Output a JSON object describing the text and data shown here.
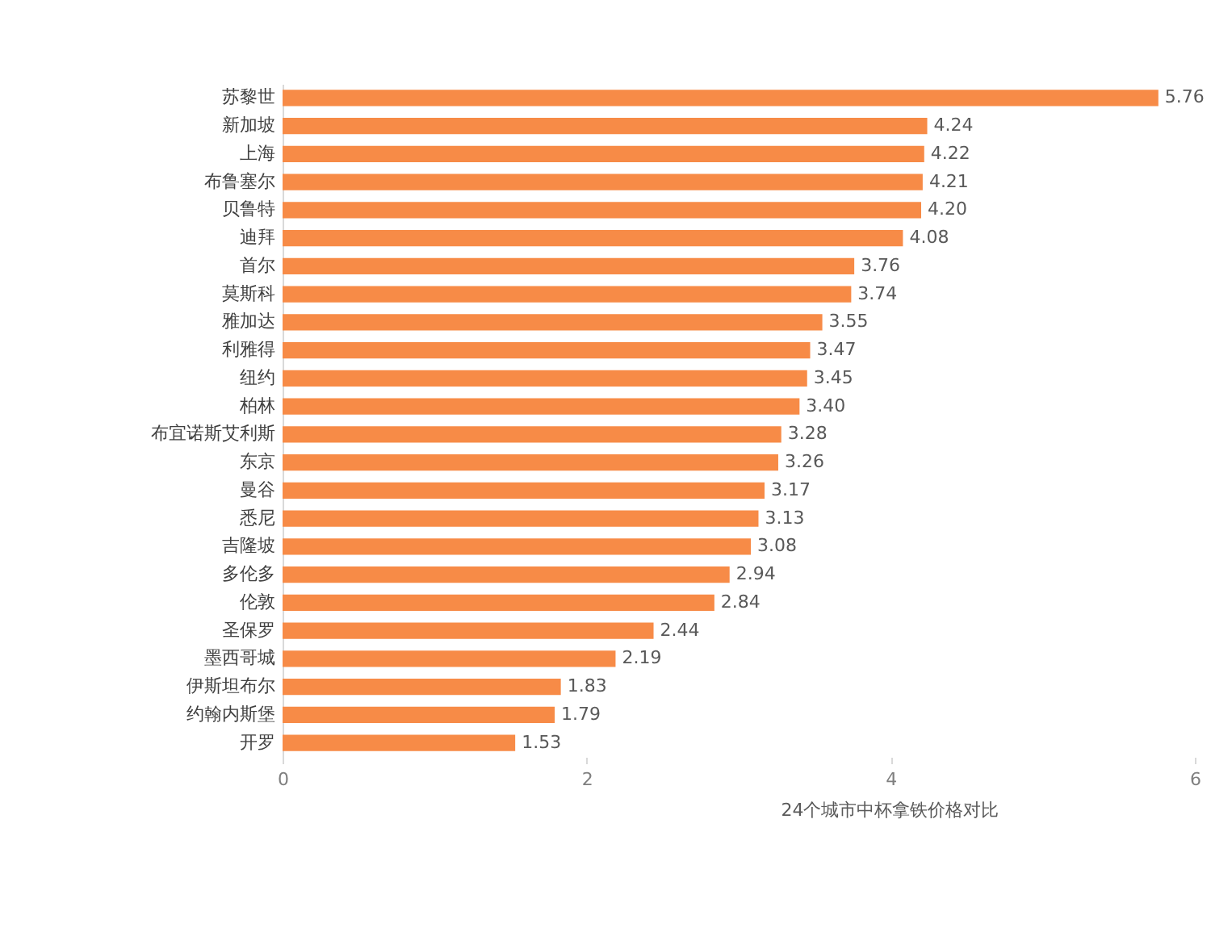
{
  "chart_data": {
    "type": "bar",
    "orientation": "horizontal",
    "xlabel": "24个城市中杯拿铁价格对比",
    "categories": [
      "苏黎世",
      "新加坡",
      "上海",
      "布鲁塞尔",
      "贝鲁特",
      "迪拜",
      "首尔",
      "莫斯科",
      "雅加达",
      "利雅得",
      "纽约",
      "柏林",
      "布宜诺斯艾利斯",
      "东京",
      "曼谷",
      "悉尼",
      "吉隆坡",
      "多伦多",
      "伦敦",
      "圣保罗",
      "墨西哥城",
      "伊斯坦布尔",
      "约翰内斯堡",
      "开罗"
    ],
    "values": [
      5.76,
      4.24,
      4.22,
      4.21,
      4.2,
      4.08,
      3.76,
      3.74,
      3.55,
      3.47,
      3.45,
      3.4,
      3.28,
      3.26,
      3.17,
      3.13,
      3.08,
      2.94,
      2.84,
      2.44,
      2.19,
      1.83,
      1.79,
      1.53
    ],
    "value_labels": [
      "5.76",
      "4.24",
      "4.22",
      "4.21",
      "4.20",
      "4.08",
      "3.76",
      "3.74",
      "3.55",
      "3.47",
      "3.45",
      "3.40",
      "3.28",
      "3.26",
      "3.17",
      "3.13",
      "3.08",
      "2.94",
      "2.84",
      "2.44",
      "2.19",
      "1.83",
      "1.79",
      "1.53"
    ],
    "color": "#f78b47",
    "xlim": [
      0,
      6
    ],
    "xticks": [
      0,
      2,
      4,
      6
    ]
  }
}
